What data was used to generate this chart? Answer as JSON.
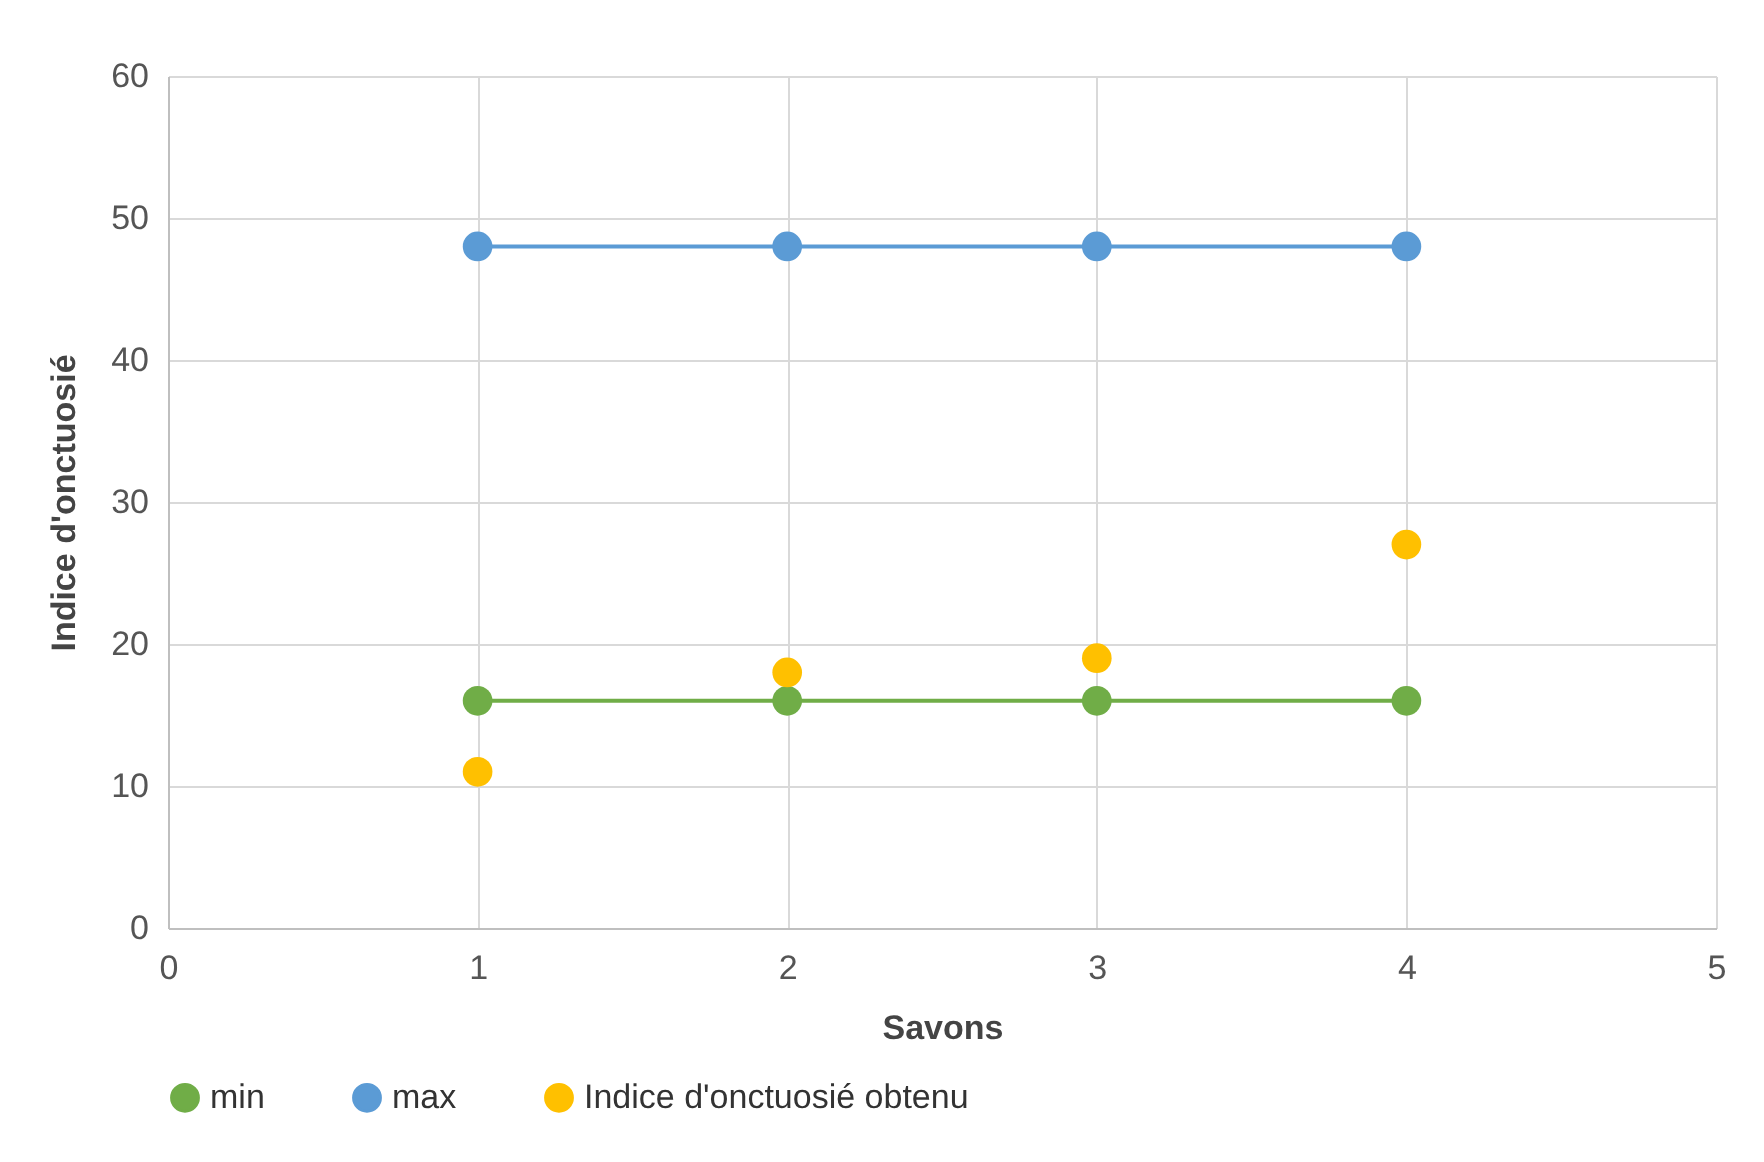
{
  "chart_data": {
    "type": "line",
    "xlabel": "Savons",
    "ylabel": "Indice d'onctuosié",
    "x": [
      1,
      2,
      3,
      4
    ],
    "series": [
      {
        "name": "min",
        "color": "#70ad47",
        "values": [
          16,
          16,
          16,
          16
        ]
      },
      {
        "name": "max",
        "color": "#5b9bd5",
        "values": [
          48,
          48,
          48,
          48
        ]
      },
      {
        "name": "Indice d'onctuosié obtenu",
        "type": "scatter",
        "color": "#ffc000",
        "values": [
          11,
          18,
          19,
          27
        ]
      }
    ],
    "xlim": [
      0,
      5
    ],
    "xticks": [
      0,
      1,
      2,
      3,
      4,
      5
    ],
    "ylim": [
      0,
      60
    ],
    "yticks": [
      0,
      10,
      20,
      30,
      40,
      50,
      60
    ],
    "grid": true,
    "legend": "bottom",
    "marker": "circle"
  }
}
